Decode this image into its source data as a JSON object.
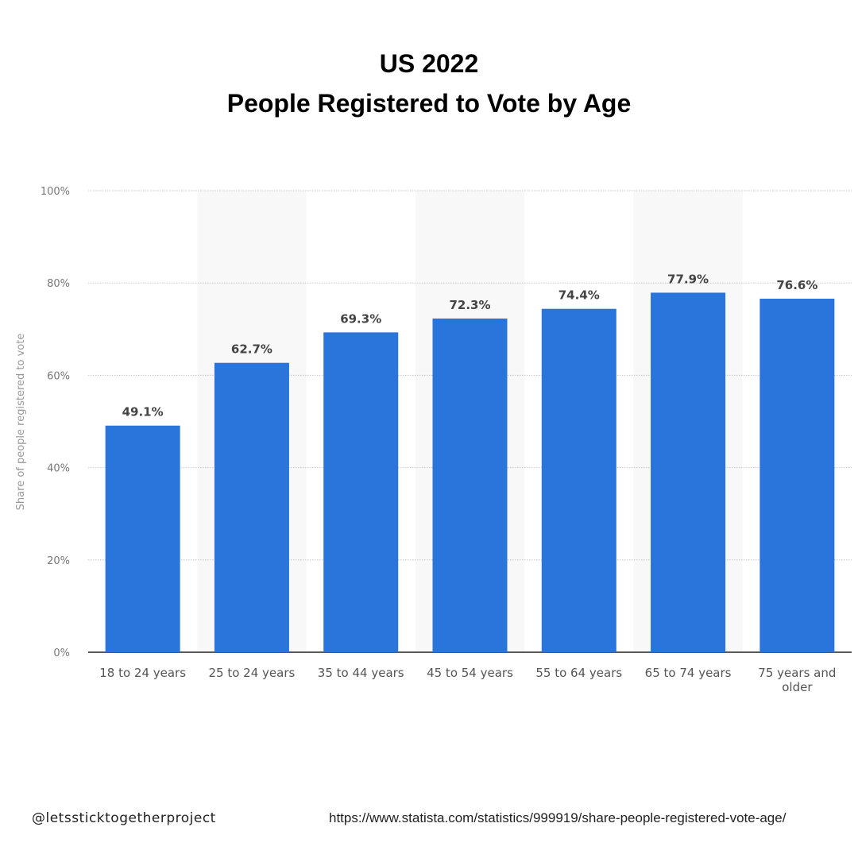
{
  "chart_data": {
    "type": "bar",
    "title": "US 2022",
    "subtitle": "People Registered to Vote by Age",
    "xlabel": "",
    "ylabel": "Share of people registered to vote",
    "categories": [
      "18 to 24 years",
      "25 to 24 years",
      "35 to 44 years",
      "45 to 54 years",
      "55 to 64 years",
      "65 to 74 years",
      "75 years and older"
    ],
    "category_lines": [
      [
        "18 to 24 years"
      ],
      [
        "25 to 24 years"
      ],
      [
        "35 to 44 years"
      ],
      [
        "45 to 54 years"
      ],
      [
        "55 to 64 years"
      ],
      [
        "65 to 74 years"
      ],
      [
        "75 years and",
        "older"
      ]
    ],
    "values": [
      49.1,
      62.7,
      69.3,
      72.3,
      74.4,
      77.9,
      76.6
    ],
    "data_labels": [
      "49.1%",
      "62.7%",
      "69.3%",
      "72.3%",
      "74.4%",
      "77.9%",
      "76.6%"
    ],
    "ylim": [
      0,
      100
    ],
    "yticks": [
      0,
      20,
      40,
      60,
      80,
      100
    ],
    "ytick_labels": [
      "0%",
      "20%",
      "40%",
      "60%",
      "80%",
      "100%"
    ],
    "grid": true,
    "colors": {
      "bar": "#2a75dc",
      "band": "#f8f8f8",
      "grid": "#c8c8c8"
    }
  },
  "footer": {
    "handle": "@letssticktogetherproject",
    "source": "https://www.statista.com/statistics/999919/share-people-registered-vote-age/"
  }
}
